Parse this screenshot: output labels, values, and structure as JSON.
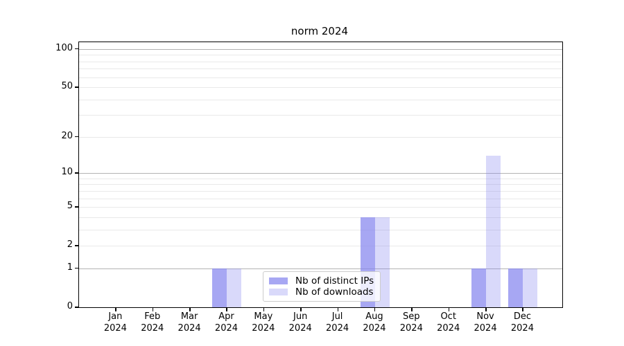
{
  "chart_data": {
    "type": "bar",
    "title": "norm 2024",
    "x_months": [
      "Jan",
      "Feb",
      "Mar",
      "Apr",
      "May",
      "Jun",
      "Jul",
      "Aug",
      "Sep",
      "Oct",
      "Nov",
      "Dec"
    ],
    "x_year": "2024",
    "series": [
      {
        "name": "Nb of distinct IPs",
        "color": "rgba(130,130,238,0.7)",
        "values": [
          0,
          0,
          0,
          1,
          0,
          0,
          0,
          4,
          0,
          0,
          1,
          1
        ]
      },
      {
        "name": "Nb of downloads",
        "color": "rgba(130,130,238,0.3)",
        "values": [
          0,
          0,
          0,
          1,
          0,
          0,
          0,
          4,
          0,
          0,
          14,
          1
        ]
      }
    ],
    "yticks": [
      0,
      1,
      2,
      5,
      10,
      20,
      50,
      100
    ],
    "major_gridlines": [
      1,
      10,
      100
    ],
    "minor_gridlines": [
      2,
      3,
      4,
      5,
      6,
      7,
      8,
      9,
      20,
      30,
      40,
      50,
      60,
      70,
      80,
      90
    ],
    "scale": "log1p",
    "ylim": [
      0,
      113
    ],
    "grid": true,
    "legend_position": "lower center",
    "colors": {
      "bar_dark": "#a7a7f3",
      "bar_light": "#d9d9fa",
      "major_grid": "#b2b2b2",
      "minor_grid": "#e9e9e9",
      "axis": "#000000"
    }
  }
}
